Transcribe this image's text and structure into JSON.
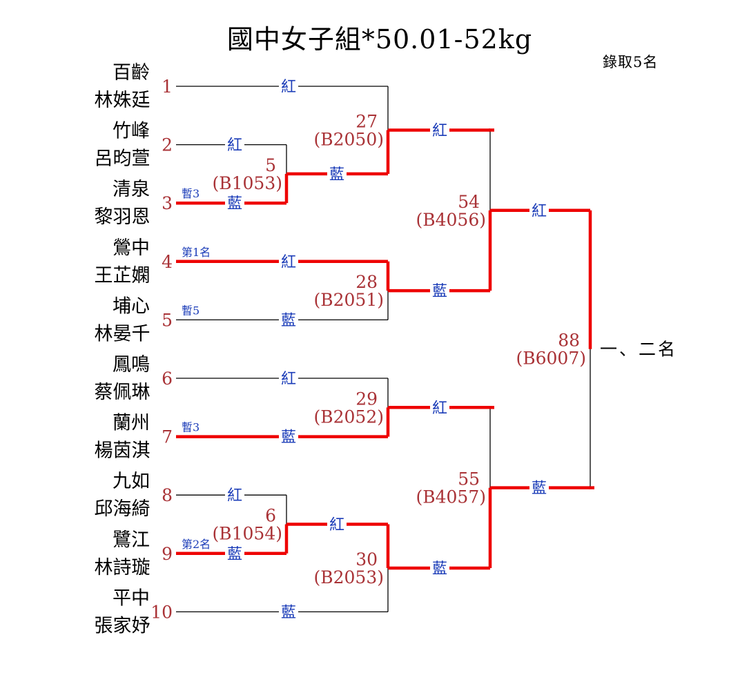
{
  "title": "國中女子組*50.01-52kg",
  "quota_note": "錄取5名",
  "colors": {
    "win_path": "#ee0000",
    "line": "#000000",
    "corner_label": "#1b3cb8",
    "number": "#a93236",
    "text": "#000000",
    "background": "#ffffff"
  },
  "corner_labels": {
    "red": "紅",
    "blue": "藍"
  },
  "entrants": [
    {
      "seed": "1",
      "school": "百齡",
      "name": "林姝廷",
      "corner": "紅",
      "path_color": "black",
      "annotation": "",
      "ends_at_col": 2
    },
    {
      "seed": "2",
      "school": "竹峰",
      "name": "呂昀萱",
      "corner": "紅",
      "path_color": "black",
      "annotation": "",
      "ends_at_col": 1
    },
    {
      "seed": "3",
      "school": "清泉",
      "name": "黎羽恩",
      "corner": "藍",
      "path_color": "red",
      "annotation": "暫3",
      "ends_at_col": 1
    },
    {
      "seed": "4",
      "school": "鶯中",
      "name": "王芷嫻",
      "corner": "紅",
      "path_color": "red",
      "annotation": "第1名",
      "ends_at_col": 2
    },
    {
      "seed": "5",
      "school": "埔心",
      "name": "林晏千",
      "corner": "藍",
      "path_color": "black",
      "annotation": "暫5",
      "ends_at_col": 2
    },
    {
      "seed": "6",
      "school": "鳳鳴",
      "name": "蔡佩琳",
      "corner": "紅",
      "path_color": "black",
      "annotation": "",
      "ends_at_col": 2
    },
    {
      "seed": "7",
      "school": "蘭州",
      "name": "楊茵淇",
      "corner": "藍",
      "path_color": "red",
      "annotation": "暫3",
      "ends_at_col": 2
    },
    {
      "seed": "8",
      "school": "九如",
      "name": "邱海綺",
      "corner": "紅",
      "path_color": "black",
      "annotation": "",
      "ends_at_col": 1
    },
    {
      "seed": "9",
      "school": "鷺江",
      "name": "林詩璇",
      "corner": "藍",
      "path_color": "red",
      "annotation": "第2名",
      "ends_at_col": 1
    },
    {
      "seed": "10",
      "school": "平中",
      "name": "張家妤",
      "corner": "藍",
      "path_color": "black",
      "annotation": "",
      "ends_at_col": 2
    }
  ],
  "matches": [
    {
      "number": "5",
      "code": "B1053",
      "col": 1,
      "top": "e2",
      "bottom": "e3",
      "winner": "bottom",
      "out_corner": "藍",
      "is_final": false
    },
    {
      "number": "6",
      "code": "B1054",
      "col": 1,
      "top": "e8",
      "bottom": "e9",
      "winner": "bottom",
      "out_corner": "紅",
      "is_final": false
    },
    {
      "number": "27",
      "code": "B2050",
      "col": 2,
      "top": "e1",
      "bottom": "m5",
      "winner": "bottom",
      "out_corner": "紅",
      "is_final": false
    },
    {
      "number": "28",
      "code": "B2051",
      "col": 2,
      "top": "e4",
      "bottom": "e5",
      "winner": "top",
      "out_corner": "藍",
      "is_final": false
    },
    {
      "number": "29",
      "code": "B2052",
      "col": 2,
      "top": "e6",
      "bottom": "e7",
      "winner": "bottom",
      "out_corner": "紅",
      "is_final": false
    },
    {
      "number": "30",
      "code": "B2053",
      "col": 2,
      "top": "m6",
      "bottom": "e10",
      "winner": "top",
      "out_corner": "藍",
      "is_final": false
    },
    {
      "number": "54",
      "code": "B4056",
      "col": 3,
      "top": "m27",
      "bottom": "m28",
      "winner": "bottom",
      "out_corner": "紅",
      "is_final": false
    },
    {
      "number": "55",
      "code": "B4057",
      "col": 3,
      "top": "m29",
      "bottom": "m30",
      "winner": "bottom",
      "out_corner": "藍",
      "is_final": false
    },
    {
      "number": "88",
      "code": "B6007",
      "col": 4,
      "top": "m54",
      "bottom": "m55",
      "winner": "top",
      "out_corner": "",
      "is_final": true,
      "result_label": "一、二名"
    }
  ]
}
